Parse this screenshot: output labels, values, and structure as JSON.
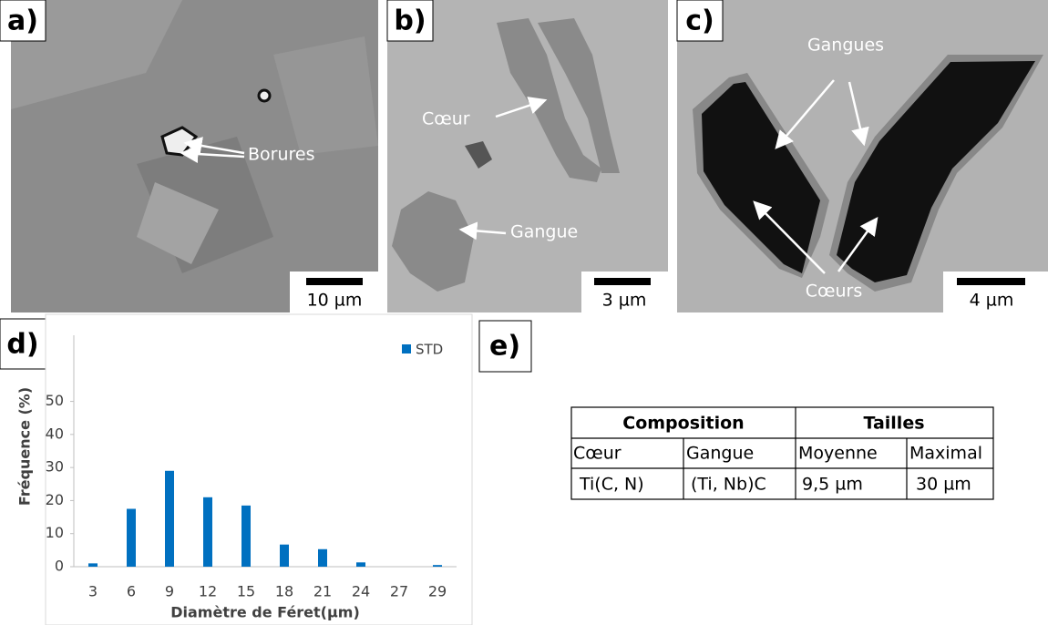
{
  "panels": {
    "a": {
      "label": "a)",
      "annotation": "Borures",
      "scale": "10 µm"
    },
    "b": {
      "label": "b)",
      "annotations": [
        "Cœur",
        "Gangue"
      ],
      "scale": "3 µm"
    },
    "c": {
      "label": "c)",
      "annotations": [
        "Gangues",
        "Cœurs"
      ],
      "scale": "4 µm"
    },
    "d": {
      "label": "d)"
    },
    "e": {
      "label": "e)"
    }
  },
  "chart_data": {
    "type": "bar",
    "x_label": "Diamètre de Féret(µm)",
    "y_label": "Fréquence (%)",
    "categories": [
      "3",
      "6",
      "9",
      "12",
      "15",
      "18",
      "21",
      "24",
      "27",
      "29"
    ],
    "series": [
      {
        "name": "STD",
        "color": "#0070c0",
        "values": [
          1,
          17.5,
          29,
          21,
          18.5,
          6.7,
          5.3,
          1.3,
          0,
          0.5
        ]
      }
    ],
    "ylim": [
      0,
      70
    ],
    "yticks": [
      0,
      10,
      20,
      30,
      40,
      50
    ],
    "legend": "top-right"
  },
  "table": {
    "header": [
      "Composition",
      "Tailles"
    ],
    "rows": [
      [
        "Cœur",
        "Gangue",
        "Moyenne",
        "Maximal"
      ],
      [
        "Ti(C, N)",
        "(Ti, Nb)C",
        "9,5 µm",
        "30 µm"
      ]
    ]
  }
}
